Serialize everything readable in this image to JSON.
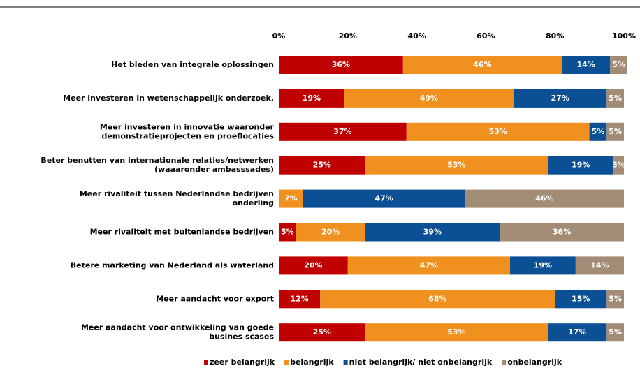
{
  "chart_data": {
    "type": "stacked-bar-horizontal",
    "categories": [
      "Het bieden van integrale oplossingen",
      "Meer investeren in wetenschappelijk onderzoek.",
      "Meer investeren in innovatie waaronder\ndemonstratieprojecten en proeflocaties",
      "Beter benutten van internationale relaties/netwerken\n(waaaronder ambasssades)",
      "Meer rivaliteit tussen Nederlandse bedrijven\nonderling",
      "Meer rivaliteit met buitenlandse bedrijven",
      "Betere marketing van Nederland als waterland",
      "Meer aandacht voor export",
      "Meer aandacht voor ontwikkeling van goede\nbusines scases"
    ],
    "series": [
      {
        "name": "zeer belangrijk",
        "color": "#c00000",
        "values": [
          36,
          19,
          37,
          25,
          null,
          5,
          20,
          12,
          25
        ],
        "value_labels": [
          "36%",
          "19%",
          "37%",
          "25%",
          null,
          "5%",
          "20%",
          "12%",
          "25%"
        ]
      },
      {
        "name": "belangrijk",
        "color": "#f0901e",
        "values": [
          46,
          49,
          53,
          53,
          7,
          20,
          47,
          68,
          53
        ],
        "value_labels": [
          "46%",
          "49%",
          "53%",
          "53%",
          "7%",
          "20%",
          "47%",
          "68%",
          "53%"
        ]
      },
      {
        "name": "niet belangrijk/ niet onbelangrijk",
        "color": "#0b4f94",
        "values": [
          14,
          27,
          5,
          19,
          47,
          39,
          19,
          15,
          17
        ],
        "value_labels": [
          "14%",
          "27%",
          "5%",
          "19%",
          "47%",
          "39%",
          "19%",
          "15%",
          "17%"
        ]
      },
      {
        "name": "onbelangrijk",
        "color": "#a38c76",
        "values": [
          5,
          5,
          5,
          3,
          46,
          36,
          14,
          5,
          5
        ],
        "value_labels": [
          "5%",
          "5%",
          "5%",
          "3%",
          "46%",
          "36%",
          "14%",
          "5%",
          "5%"
        ]
      }
    ],
    "xlim": [
      0,
      100
    ],
    "xticks": [
      {
        "value": 0,
        "label": "0%"
      },
      {
        "value": 20,
        "label": "20%"
      },
      {
        "value": 40,
        "label": "40%"
      },
      {
        "value": 60,
        "label": "60%"
      },
      {
        "value": 80,
        "label": "80%"
      },
      {
        "value": 100,
        "label": "100%"
      }
    ]
  }
}
